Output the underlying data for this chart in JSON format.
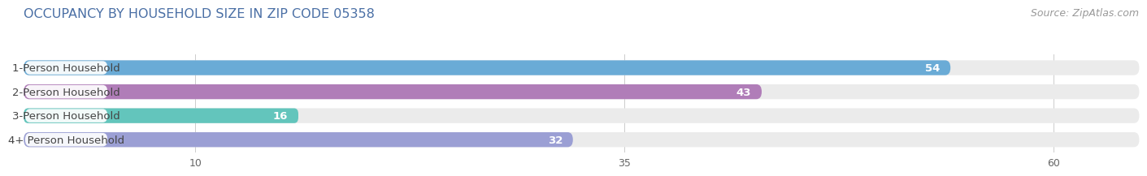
{
  "title": "OCCUPANCY BY HOUSEHOLD SIZE IN ZIP CODE 05358",
  "source": "Source: ZipAtlas.com",
  "categories": [
    "1-Person Household",
    "2-Person Household",
    "3-Person Household",
    "4+ Person Household"
  ],
  "values": [
    54,
    43,
    16,
    32
  ],
  "bar_colors": [
    "#6aabd6",
    "#b07db8",
    "#63c5bc",
    "#9b9fd4"
  ],
  "xlim": [
    0,
    65
  ],
  "xlim_display": 60,
  "xticks": [
    10,
    35,
    60
  ],
  "background_color": "#ffffff",
  "bar_bg_color": "#ebebeb",
  "label_bg_color": "#ffffff",
  "title_color": "#4a6fa5",
  "source_color": "#999999",
  "value_text_color": "#ffffff",
  "label_text_color": "#444444",
  "title_fontsize": 11.5,
  "source_fontsize": 9,
  "label_fontsize": 9.5,
  "value_fontsize": 9.5,
  "tick_fontsize": 9,
  "bar_height": 0.62,
  "bar_gap": 0.38
}
